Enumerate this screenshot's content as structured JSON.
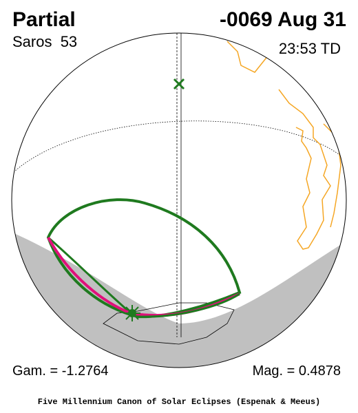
{
  "header": {
    "title": "Partial",
    "date": "-0069 Aug 31",
    "saros": "Saros  53",
    "time": "23:53 TD"
  },
  "footer": {
    "gamma": "Gam. = -1.2764",
    "magnitude": "Mag. = 0.4878",
    "credit": "Five Millennium Canon of Solar Eclipses (Espenak & Meeus)"
  }
}
